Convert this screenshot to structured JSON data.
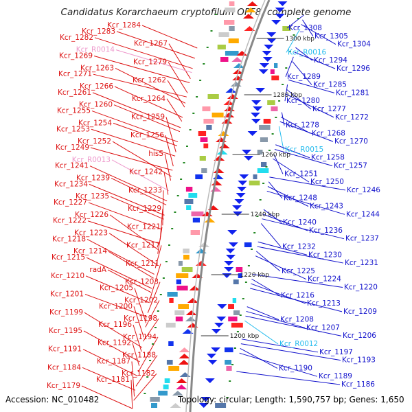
{
  "title": "Candidatus Korarchaeum cryptofilum OPF8, complete genome",
  "accession": "Accession: NC_010482",
  "info": "Topology: circular; Length: 1,590,757 bp; Genes: 1,650",
  "colors": {
    "left_label": "#dd1111",
    "left_rna": "#ee99cc",
    "right_label": "#1111cc",
    "right_rna": "#22bbee",
    "backbone": "#888888",
    "tick": "#228822",
    "arrow_red": "#ee1111",
    "arrow_blue": "#1122ee"
  },
  "kbp_ticks": [
    {
      "label": "1300 kbp",
      "kind": "kbp"
    },
    {
      "label": "1280 kbp",
      "kind": "kbp"
    },
    {
      "label": "1260 kbp",
      "kind": "kbp"
    },
    {
      "label": "1240 kbp",
      "kind": "kbp"
    },
    {
      "label": "1220 kbp",
      "kind": "kbp"
    },
    {
      "label": "1200 kbp",
      "kind": "kbp"
    }
  ],
  "left_labels": [
    {
      "text": "Kcr_1284",
      "kind": "gene"
    },
    {
      "text": "Kcr_1283",
      "kind": "gene"
    },
    {
      "text": "Kcr_1282",
      "kind": "gene"
    },
    {
      "text": "Kcr_1267",
      "kind": "gene"
    },
    {
      "text": "Kcr_R0014",
      "kind": "rna"
    },
    {
      "text": "Kcr_1269",
      "kind": "gene"
    },
    {
      "text": "Kcr_1279",
      "kind": "gene"
    },
    {
      "text": "Kcr_1263",
      "kind": "gene"
    },
    {
      "text": "Kcr_1271",
      "kind": "gene"
    },
    {
      "text": "Kcr_1262",
      "kind": "gene"
    },
    {
      "text": "Kcr_1266",
      "kind": "gene"
    },
    {
      "text": "Kcr_1261",
      "kind": "gene"
    },
    {
      "text": "Kcr_1264",
      "kind": "gene"
    },
    {
      "text": "Kcr_1260",
      "kind": "gene"
    },
    {
      "text": "Kcr_1255",
      "kind": "gene"
    },
    {
      "text": "Kcr_1259",
      "kind": "gene"
    },
    {
      "text": "Kcr_1254",
      "kind": "gene"
    },
    {
      "text": "Kcr_1253",
      "kind": "gene"
    },
    {
      "text": "Kcr_1256",
      "kind": "gene"
    },
    {
      "text": "Kcr_1252",
      "kind": "gene"
    },
    {
      "text": "Kcr_1249",
      "kind": "gene"
    },
    {
      "text": "hisS",
      "kind": "gene"
    },
    {
      "text": "Kcr_R0013",
      "kind": "rna"
    },
    {
      "text": "Kcr_1241",
      "kind": "gene"
    },
    {
      "text": "Kcr_1242",
      "kind": "gene"
    },
    {
      "text": "Kcr_1239",
      "kind": "gene"
    },
    {
      "text": "Kcr_1234",
      "kind": "gene"
    },
    {
      "text": "Kcr_1233",
      "kind": "gene"
    },
    {
      "text": "Kcr_1235",
      "kind": "gene"
    },
    {
      "text": "Kcr_1227",
      "kind": "gene"
    },
    {
      "text": "Kcr_1229",
      "kind": "gene"
    },
    {
      "text": "Kcr_1226",
      "kind": "gene"
    },
    {
      "text": "Kcr_1222",
      "kind": "gene"
    },
    {
      "text": "Kcr_1221",
      "kind": "gene"
    },
    {
      "text": "Kcr_1223",
      "kind": "gene"
    },
    {
      "text": "Kcr_1218",
      "kind": "gene"
    },
    {
      "text": "Kcr_1217",
      "kind": "gene"
    },
    {
      "text": "Kcr_1214",
      "kind": "gene"
    },
    {
      "text": "Kcr_1215",
      "kind": "gene"
    },
    {
      "text": "Kcr_1211",
      "kind": "gene"
    },
    {
      "text": "radA",
      "kind": "gene"
    },
    {
      "text": "Kcr_1210",
      "kind": "gene"
    },
    {
      "text": "Kcr_1203",
      "kind": "gene"
    },
    {
      "text": "Kcr_1205",
      "kind": "gene"
    },
    {
      "text": "Kcr_1201",
      "kind": "gene"
    },
    {
      "text": "Kcr_1202",
      "kind": "gene"
    },
    {
      "text": "Kcr_1200",
      "kind": "gene"
    },
    {
      "text": "Kcr_1199",
      "kind": "gene"
    },
    {
      "text": "Kcr_1198",
      "kind": "gene"
    },
    {
      "text": "Kcr_1196",
      "kind": "gene"
    },
    {
      "text": "Kcr_1195",
      "kind": "gene"
    },
    {
      "text": "Kcr_1194",
      "kind": "gene"
    },
    {
      "text": "Kcr_1192",
      "kind": "gene"
    },
    {
      "text": "Kcr_1191",
      "kind": "gene"
    },
    {
      "text": "Kcr_1188",
      "kind": "gene"
    },
    {
      "text": "Kcr_1187",
      "kind": "gene"
    },
    {
      "text": "Kcr_1184",
      "kind": "gene"
    },
    {
      "text": "Kcr_1182",
      "kind": "gene"
    },
    {
      "text": "Kcr_1181",
      "kind": "gene"
    },
    {
      "text": "Kcr_1179",
      "kind": "gene"
    }
  ],
  "right_labels": [
    {
      "text": "Kcr_1308",
      "kind": "gene"
    },
    {
      "text": "Kcr_1305",
      "kind": "gene"
    },
    {
      "text": "Kcr_1304",
      "kind": "gene"
    },
    {
      "text": "Kcr_R0016",
      "kind": "rna"
    },
    {
      "text": "Kcr_1294",
      "kind": "gene"
    },
    {
      "text": "Kcr_1296",
      "kind": "gene"
    },
    {
      "text": "Kcr_1289",
      "kind": "gene"
    },
    {
      "text": "Kcr_1285",
      "kind": "gene"
    },
    {
      "text": "Kcr_1281",
      "kind": "gene"
    },
    {
      "text": "Kcr_1280",
      "kind": "gene"
    },
    {
      "text": "Kcr_1277",
      "kind": "gene"
    },
    {
      "text": "Kcr_1272",
      "kind": "gene"
    },
    {
      "text": "Kcr_1278",
      "kind": "gene"
    },
    {
      "text": "Kcr_1268",
      "kind": "gene"
    },
    {
      "text": "Kcr_1270",
      "kind": "gene"
    },
    {
      "text": "Kcr_R0015",
      "kind": "rna"
    },
    {
      "text": "Kcr_1258",
      "kind": "gene"
    },
    {
      "text": "Kcr_1257",
      "kind": "gene"
    },
    {
      "text": "Kcr_1251",
      "kind": "gene"
    },
    {
      "text": "Kcr_1250",
      "kind": "gene"
    },
    {
      "text": "Kcr_1246",
      "kind": "gene"
    },
    {
      "text": "Kcr_1248",
      "kind": "gene"
    },
    {
      "text": "Kcr_1243",
      "kind": "gene"
    },
    {
      "text": "Kcr_1244",
      "kind": "gene"
    },
    {
      "text": "Kcr_1240",
      "kind": "gene"
    },
    {
      "text": "Kcr_1236",
      "kind": "gene"
    },
    {
      "text": "Kcr_1237",
      "kind": "gene"
    },
    {
      "text": "Kcr_1232",
      "kind": "gene"
    },
    {
      "text": "Kcr_1230",
      "kind": "gene"
    },
    {
      "text": "Kcr_1231",
      "kind": "gene"
    },
    {
      "text": "Kcr_1225",
      "kind": "gene"
    },
    {
      "text": "Kcr_1224",
      "kind": "gene"
    },
    {
      "text": "Kcr_1220",
      "kind": "gene"
    },
    {
      "text": "Kcr_1216",
      "kind": "gene"
    },
    {
      "text": "Kcr_1213",
      "kind": "gene"
    },
    {
      "text": "Kcr_1209",
      "kind": "gene"
    },
    {
      "text": "Kcr_1208",
      "kind": "gene"
    },
    {
      "text": "Kcr_1207",
      "kind": "gene"
    },
    {
      "text": "Kcr_1206",
      "kind": "gene"
    },
    {
      "text": "Kcr_R0012",
      "kind": "rna"
    },
    {
      "text": "Kcr_1197",
      "kind": "gene"
    },
    {
      "text": "Kcr_1193",
      "kind": "gene"
    },
    {
      "text": "Kcr_1190",
      "kind": "gene"
    },
    {
      "text": "Kcr_1189",
      "kind": "gene"
    },
    {
      "text": "Kcr_1186",
      "kind": "gene"
    }
  ]
}
